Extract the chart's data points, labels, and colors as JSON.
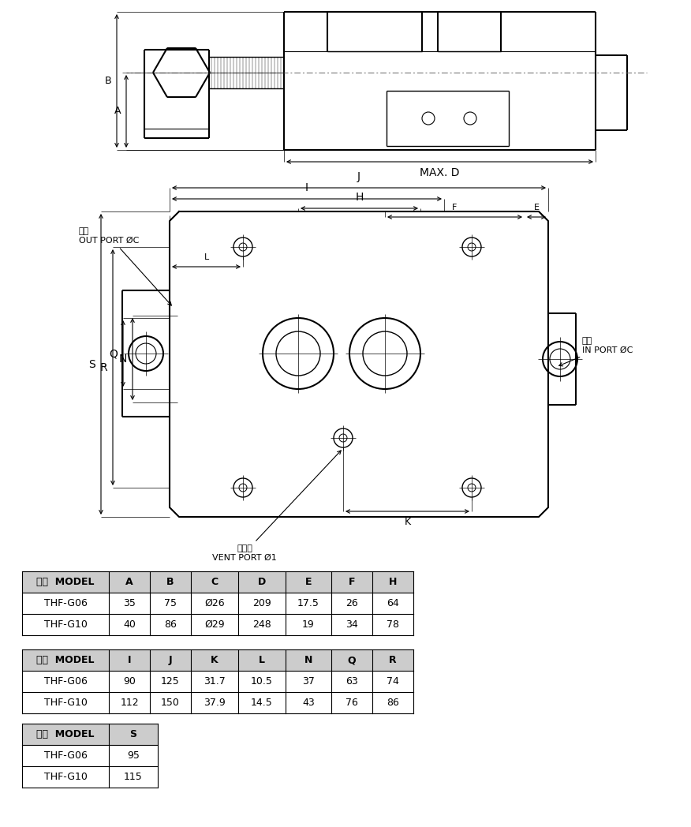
{
  "table1_headers": [
    "型式  MODEL",
    "A",
    "B",
    "C",
    "D",
    "E",
    "F",
    "H"
  ],
  "table1_rows": [
    [
      "THF-G06",
      "35",
      "75",
      "Ø26",
      "209",
      "17.5",
      "26",
      "64"
    ],
    [
      "THF-G10",
      "40",
      "86",
      "Ø29",
      "248",
      "19",
      "34",
      "78"
    ]
  ],
  "table2_headers": [
    "型式  MODEL",
    "I",
    "J",
    "K",
    "L",
    "N",
    "Q",
    "R"
  ],
  "table2_rows": [
    [
      "THF-G06",
      "90",
      "125",
      "31.7",
      "10.5",
      "37",
      "63",
      "74"
    ],
    [
      "THF-G10",
      "112",
      "150",
      "37.9",
      "14.5",
      "43",
      "76",
      "86"
    ]
  ],
  "table3_headers": [
    "型式  MODEL",
    "S"
  ],
  "table3_rows": [
    [
      "THF-G06",
      "95"
    ],
    [
      "THF-G10",
      "115"
    ]
  ],
  "bg_color": "#ffffff",
  "lc": "#000000",
  "header_bg": "#cccccc"
}
